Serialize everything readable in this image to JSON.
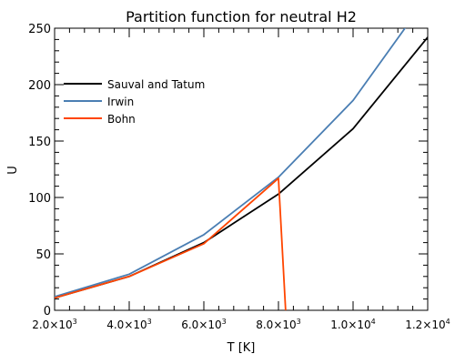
{
  "chart_data": {
    "type": "line",
    "title": "Partition function for neutral H2",
    "xlabel": "T [K]",
    "ylabel": "U",
    "xlim": [
      2000,
      12000
    ],
    "ylim": [
      0,
      250
    ],
    "grid": false,
    "legend_position": "top-left",
    "x_ticks": [
      {
        "value": 2000,
        "mantissa": "2.0",
        "exp": "3"
      },
      {
        "value": 4000,
        "mantissa": "4.0",
        "exp": "3"
      },
      {
        "value": 6000,
        "mantissa": "6.0",
        "exp": "3"
      },
      {
        "value": 8000,
        "mantissa": "8.0",
        "exp": "3"
      },
      {
        "value": 10000,
        "mantissa": "1.0",
        "exp": "4"
      },
      {
        "value": 12000,
        "mantissa": "1.2",
        "exp": "4"
      }
    ],
    "x_tick_times": "×10",
    "y_ticks": [
      0,
      50,
      100,
      150,
      200,
      250
    ],
    "series": [
      {
        "name": "Sauval and Tatum",
        "color": "#000000",
        "points": [
          [
            2000,
            11
          ],
          [
            4000,
            30
          ],
          [
            6000,
            60
          ],
          [
            8000,
            103
          ],
          [
            10000,
            161
          ],
          [
            12000,
            242
          ]
        ]
      },
      {
        "name": "Irwin",
        "color": "#4a7eb3",
        "points": [
          [
            2000,
            12
          ],
          [
            4000,
            32
          ],
          [
            6000,
            67
          ],
          [
            8000,
            118
          ],
          [
            10000,
            186
          ],
          [
            11500,
            255
          ]
        ]
      },
      {
        "name": "Bohn",
        "color": "#ff4500",
        "points": [
          [
            2000,
            11
          ],
          [
            4000,
            30
          ],
          [
            6000,
            59
          ],
          [
            8000,
            117
          ],
          [
            8200,
            -5
          ]
        ]
      }
    ]
  }
}
